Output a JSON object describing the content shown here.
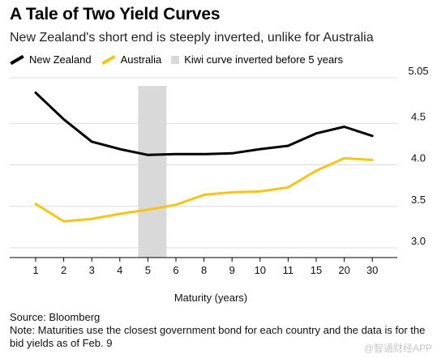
{
  "header": {
    "title": "A Tale of Two Yield Curves",
    "subtitle": "New Zealand's short end is steeply inverted, unlike for Australia"
  },
  "legend": {
    "nz_label": "New Zealand",
    "au_label": "Australia",
    "band_label": "Kiwi curve inverted before 5 years"
  },
  "colors": {
    "nz": "#000000",
    "au": "#f5c518",
    "band": "#d9d9d9",
    "grid": "#dcdcdc"
  },
  "chart_data": {
    "type": "line",
    "categories": [
      "1",
      "2",
      "3",
      "4",
      "5",
      "6",
      "8",
      "9",
      "10",
      "11",
      "15",
      "20",
      "30"
    ],
    "series": [
      {
        "name": "New Zealand",
        "values": [
          4.85,
          4.53,
          4.26,
          4.17,
          4.1,
          4.11,
          4.11,
          4.12,
          4.17,
          4.21,
          4.36,
          4.44,
          4.33
        ]
      },
      {
        "name": "Australia",
        "values": [
          3.51,
          3.3,
          3.33,
          3.39,
          3.44,
          3.5,
          3.62,
          3.65,
          3.66,
          3.71,
          3.91,
          4.06,
          4.04
        ]
      }
    ],
    "ylim": [
      3.0,
      5.05
    ],
    "yticks": [
      "3.0",
      "3.5",
      "4.0",
      "4.5",
      "5.05"
    ],
    "xlabel": "Maturity (years)",
    "ylabel": "",
    "band": {
      "from_category": "5",
      "label": "Kiwi curve inverted before 5 years"
    },
    "grid": true,
    "y_axis_side": "right"
  },
  "footer": {
    "source": "Source: Bloomberg",
    "note": "Note: Maturities use the closest government bond for each country and the data is for the bid yields as of Feb. 9"
  },
  "watermark": "@智通财经APP"
}
